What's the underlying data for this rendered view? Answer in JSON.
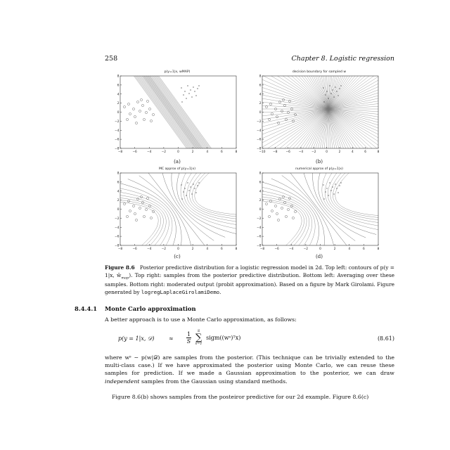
{
  "header": {
    "page_number": "258",
    "chapter": "Chapter 8.  Logistic regression"
  },
  "panels": [
    {
      "title": "p(y=1|x, wMAP)",
      "caption": "(a)",
      "x_ticks": [
        "−8",
        "−6",
        "−4",
        "−2",
        "0",
        "2",
        "4",
        "6",
        "8"
      ],
      "y_ticks": [
        "8",
        "6",
        "4",
        "2",
        "0",
        "−2",
        "−4",
        "−6",
        "−8"
      ]
    },
    {
      "title": "decision boundary for sampled w",
      "caption": "(b)",
      "x_ticks": [
        "−10",
        "−8",
        "−6",
        "−4",
        "−2",
        "0",
        "2",
        "4",
        "6",
        "8"
      ],
      "y_ticks": [
        "8",
        "6",
        "4",
        "2",
        "0",
        "−2",
        "−4",
        "−6",
        "−8"
      ]
    },
    {
      "title": "MC approx of p(y=1|x)",
      "caption": "(c)",
      "x_ticks": [
        "−8",
        "−6",
        "−4",
        "−2",
        "0",
        "2",
        "4",
        "6",
        "8"
      ],
      "y_ticks": [
        "8",
        "6",
        "4",
        "2",
        "0",
        "−2",
        "−4",
        "−6",
        "−8"
      ]
    },
    {
      "title": "numerical approx of p(y=1|x)",
      "caption": "(d)",
      "x_ticks": [
        "−8",
        "−6",
        "−4",
        "−2",
        "0",
        "2",
        "4",
        "6",
        "8"
      ],
      "y_ticks": [
        "8",
        "6",
        "4",
        "2",
        "0",
        "−2",
        "−4",
        "−6",
        "−8"
      ]
    }
  ],
  "caption": {
    "label": "Figure 8.6",
    "text_1": "Posterior predictive distribution for a logistic regression model in 2d.  Top left: contours of p(y = 1|x, ŵ",
    "text_1_sub": "map",
    "text_2": ").  Top right: samples from the posterior predictive distribution.  Bottom left: Averaging over these samples.  Bottom right: moderated output (probit approximation).  Based on a figure by Mark Girolami. Figure generated by ",
    "code": "logregLaplaceGirolamiDemo",
    "text_3": "."
  },
  "section": {
    "number": "8.4.4.1",
    "title": "Monte Carlo approximation"
  },
  "paragraph_1": "A better approach is to use a Monte Carlo approximation, as follows:",
  "equation": {
    "lhs": "p(y = 1|x, 𝒟)",
    "approx": "≈",
    "frac_num": "1",
    "frac_den": "S",
    "sum_top": "S",
    "sum_bottom": "s=1",
    "summand": "sigm((wˢ)ᵀx)",
    "number": "(8.61)"
  },
  "paragraph_2": "where wˢ ∼ p(w|𝒟) are samples from the posterior. (This technique can be trivially extended to the multi-class case.) If we have approximated the posterior using Monte Carlo, we can reuse these samples for prediction.  If we made a Gaussian approximation to the posterior, we can draw ",
  "paragraph_2_em": "independent",
  "paragraph_2_end": " samples from the Gaussian using standard methods.",
  "paragraph_3": "Figure 8.6(b) shows samples from the posteiror predictive for our 2d example.  Figure 8.6(c)"
}
